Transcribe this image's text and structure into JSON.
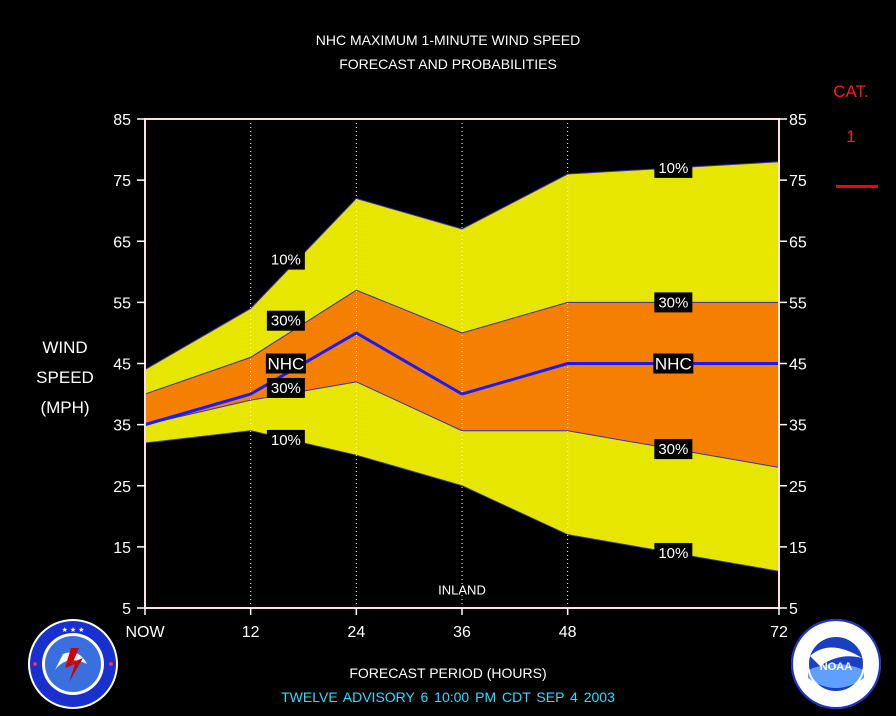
{
  "header": {
    "title_line1": "NHC MAXIMUM 1-MINUTE WIND SPEED",
    "title_line2": "FORECAST AND PROBABILITIES"
  },
  "yaxis": {
    "label_lines": [
      "WIND",
      "SPEED",
      "(MPH)"
    ]
  },
  "category": {
    "label": "CAT.",
    "value": "1",
    "color": "#ff0000"
  },
  "xaxis": {
    "title": "FORECAST PERIOD (HOURS)"
  },
  "footer": {
    "advisory_text": "TWELVE    ADVISORY  6  10:00  PM  CDT  SEP  4  2003"
  },
  "colors": {
    "background": "#000000",
    "outer_band": "#e6e600",
    "inner_band": "#f57f00",
    "forecast_line": "#1a1aff",
    "footer_text": "#25e0ff"
  },
  "logos": {
    "left": "nws-seal-icon",
    "right": "noaa-seal-icon"
  },
  "chart_data": {
    "type": "area",
    "title": "NHC MAXIMUM 1-MINUTE WIND SPEED FORECAST AND PROBABILITIES",
    "xlabel": "FORECAST PERIOD (HOURS)",
    "ylabel": "WIND SPEED (MPH)",
    "x": [
      0,
      12,
      24,
      36,
      48,
      72
    ],
    "xticklabels": [
      "NOW",
      "12",
      "24",
      "36",
      "48",
      "72"
    ],
    "xlim": [
      0,
      72
    ],
    "ylim": [
      5,
      85
    ],
    "yticks": [
      5,
      15,
      25,
      35,
      45,
      55,
      65,
      75,
      85
    ],
    "grid": "vertical dotted lines at 12, 24, 36, 48",
    "series": [
      {
        "name": "10%",
        "values": [
          44,
          54,
          72,
          67,
          76,
          78
        ]
      },
      {
        "name": "30%",
        "values": [
          40,
          46,
          57,
          50,
          55,
          55
        ]
      },
      {
        "name": "NHC",
        "values": [
          35,
          40,
          50,
          40,
          45,
          45
        ]
      },
      {
        "name": "30%",
        "values": [
          35,
          39,
          42,
          34,
          34,
          28
        ]
      },
      {
        "name": "10%",
        "values": [
          32,
          34,
          30,
          25,
          17,
          11
        ]
      }
    ],
    "band_labels": [
      {
        "text": "10%",
        "x": 16,
        "y": 62
      },
      {
        "text": "30%",
        "x": 16,
        "y": 52
      },
      {
        "text": "NHC",
        "x": 16,
        "y": 45
      },
      {
        "text": "30%",
        "x": 16,
        "y": 41
      },
      {
        "text": "10%",
        "x": 16,
        "y": 32.5
      },
      {
        "text": "10%",
        "x": 60,
        "y": 77
      },
      {
        "text": "30%",
        "x": 60,
        "y": 55
      },
      {
        "text": "NHC",
        "x": 60,
        "y": 45
      },
      {
        "text": "30%",
        "x": 60,
        "y": 31
      },
      {
        "text": "10%",
        "x": 60,
        "y": 14
      }
    ],
    "annotations": [
      {
        "text": "INLAND",
        "x": 36,
        "y": 8
      }
    ]
  }
}
